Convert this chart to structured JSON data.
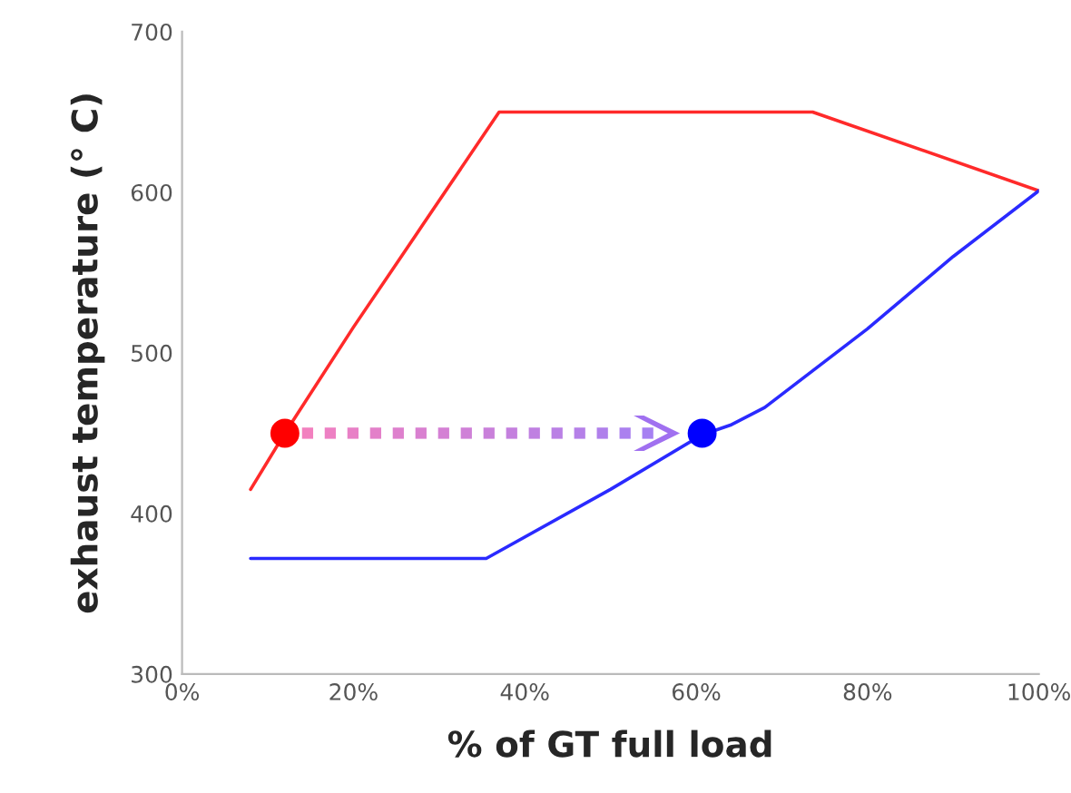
{
  "chart_data": {
    "type": "line",
    "xlabel": "% of GT full load",
    "ylabel": "exhaust temperature (° C)",
    "xlim": [
      0,
      100
    ],
    "xticks": [
      {
        "value": 0,
        "label": "0%"
      },
      {
        "value": 20,
        "label": "20%"
      },
      {
        "value": 40,
        "label": "40%"
      },
      {
        "value": 60,
        "label": "60%"
      },
      {
        "value": 80,
        "label": "80%"
      },
      {
        "value": 100,
        "label": "100%"
      }
    ],
    "ylim": [
      300,
      700
    ],
    "yticks": [
      300,
      400,
      500,
      600,
      700
    ],
    "grid": false,
    "legend": false,
    "series": [
      {
        "color": "#ff2a2a",
        "x": [
          8,
          12,
          20,
          28,
          37,
          73.6,
          100
        ],
        "values": [
          415,
          450,
          516,
          579,
          650,
          650,
          601
        ]
      },
      {
        "color": "#2a2aff",
        "x": [
          8,
          35.5,
          50,
          60.7,
          64,
          68,
          80,
          90,
          100
        ],
        "values": [
          372,
          372,
          415,
          449,
          455,
          466,
          515,
          560,
          601
        ]
      },
      {
        "type": "scatter",
        "color": "#ff0000",
        "x": [
          12
        ],
        "values": [
          450
        ],
        "marker": "circle"
      },
      {
        "type": "scatter",
        "color": "#0000ff",
        "x": [
          60.7
        ],
        "values": [
          450
        ],
        "marker": "circle"
      }
    ]
  }
}
